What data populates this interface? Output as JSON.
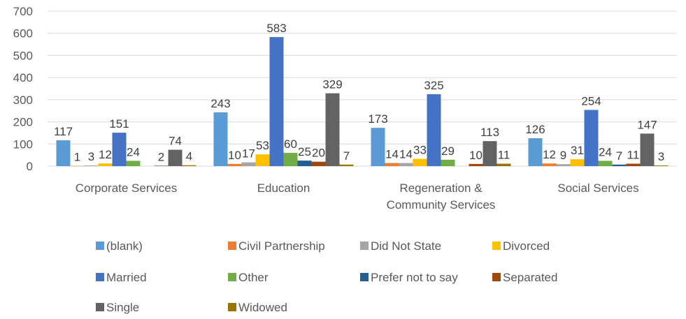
{
  "chart_data": {
    "type": "bar",
    "categories": [
      [
        "Corporate Services"
      ],
      [
        "Education"
      ],
      [
        "Regeneration &",
        "Community Services"
      ],
      [
        "Social Services"
      ]
    ],
    "series": [
      {
        "name": "(blank)",
        "color": "#5B9BD5",
        "values": [
          117,
          243,
          173,
          126
        ]
      },
      {
        "name": "Civil Partnership",
        "color": "#ED7D31",
        "values": [
          1,
          10,
          14,
          12
        ]
      },
      {
        "name": "Did Not State",
        "color": "#A5A5A5",
        "values": [
          3,
          17,
          14,
          9
        ]
      },
      {
        "name": "Divorced",
        "color": "#FFC000",
        "values": [
          12,
          53,
          33,
          31
        ]
      },
      {
        "name": "Married",
        "color": "#4472C4",
        "values": [
          151,
          583,
          325,
          254
        ]
      },
      {
        "name": "Other",
        "color": "#70AD47",
        "values": [
          24,
          60,
          29,
          24
        ]
      },
      {
        "name": "Prefer not to say",
        "color": "#255E91",
        "values": [
          null,
          25,
          null,
          7
        ]
      },
      {
        "name": "Separated",
        "color": "#9E480E",
        "values": [
          2,
          20,
          10,
          11
        ]
      },
      {
        "name": "Single",
        "color": "#636363",
        "values": [
          74,
          329,
          113,
          147
        ]
      },
      {
        "name": "Widowed",
        "color": "#997300",
        "values": [
          4,
          7,
          11,
          3
        ]
      }
    ],
    "ylim": [
      0,
      700
    ],
    "yticks": [
      0,
      100,
      200,
      300,
      400,
      500,
      600,
      700
    ],
    "grid": true,
    "legend_position": "bottom"
  }
}
